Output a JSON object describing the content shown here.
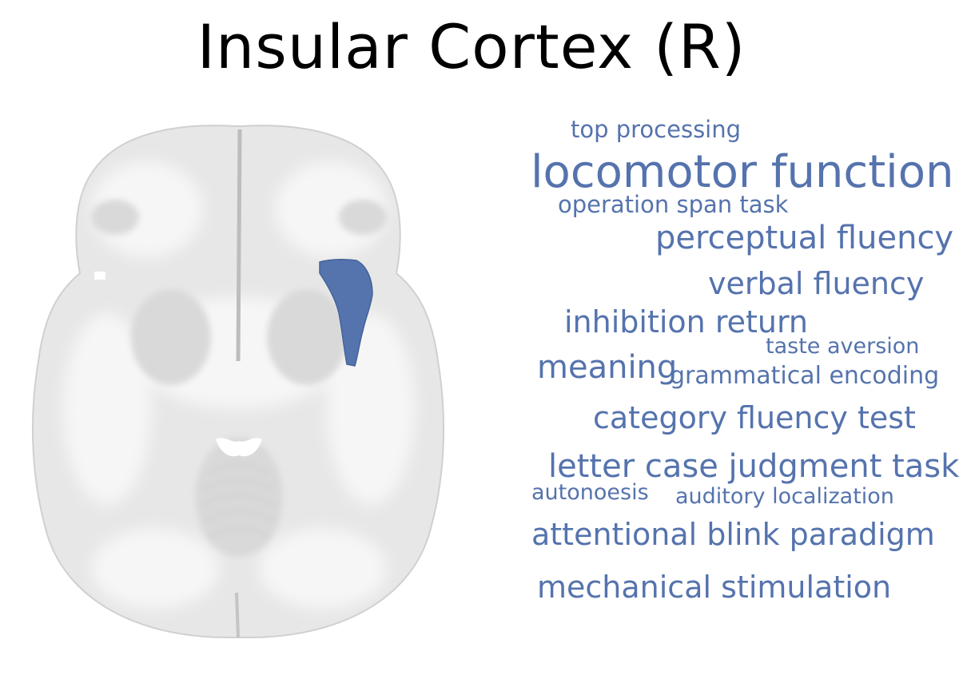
{
  "title": "Insular Cortex (R)",
  "colors": {
    "highlight": "#5573ad",
    "word_cloud": "#5573ad",
    "brain_tissue": "#e6e6e6",
    "background": "#ffffff"
  },
  "terms": [
    "top processing",
    "locomotor function",
    "operation span task",
    "perceptual fluency",
    "verbal fluency",
    "inhibition return",
    "taste aversion",
    "meaning",
    "grammatical encoding",
    "category fluency test",
    "letter case judgment task",
    "autonoesis",
    "auditory localization",
    "attentional blink paradigm",
    "mechanical stimulation"
  ]
}
